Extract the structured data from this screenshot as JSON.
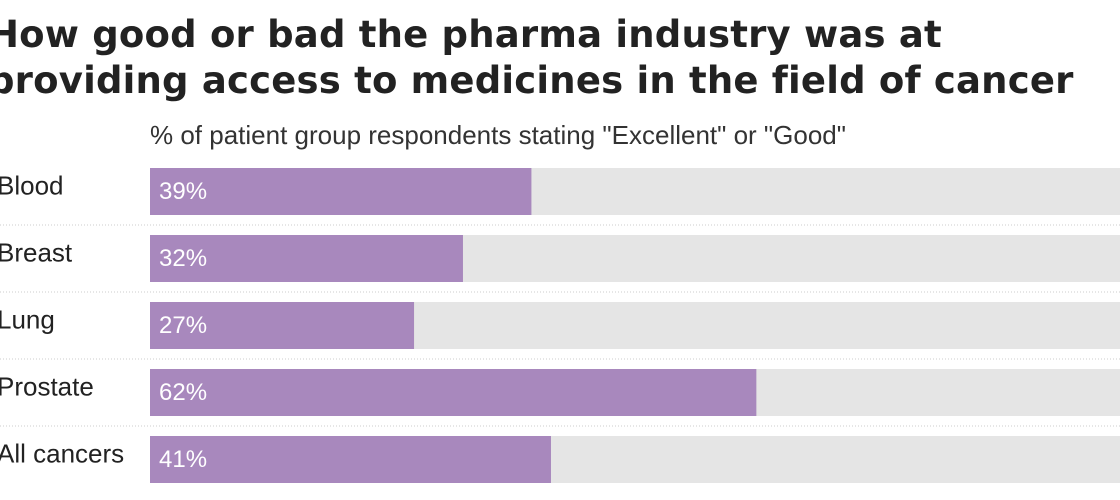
{
  "title_line1": "How good or bad the pharma industry was at",
  "title_line2": "providing access to medicines in the field of cancer",
  "subtitle": "% of patient group respondents stating \"Excellent\" or \"Good\"",
  "colors": {
    "bar": "#a888bd",
    "track": "#e5e5e5",
    "divider": "#cccccc",
    "label_text": "#ffffff"
  },
  "chart_data": {
    "type": "bar",
    "orientation": "horizontal",
    "title": "How good or bad the pharma industry was at providing access to medicines in the field of cancer",
    "subtitle": "% of patient group respondents stating \"Excellent\" or \"Good\"",
    "categories": [
      "Blood",
      "Breast",
      "Lung",
      "Prostate",
      "All cancers"
    ],
    "values": [
      39,
      32,
      27,
      62,
      41
    ],
    "value_labels": [
      "39%",
      "32%",
      "27%",
      "62%",
      "41%"
    ],
    "xlim": [
      0,
      100
    ],
    "grid": false,
    "legend": "none"
  }
}
